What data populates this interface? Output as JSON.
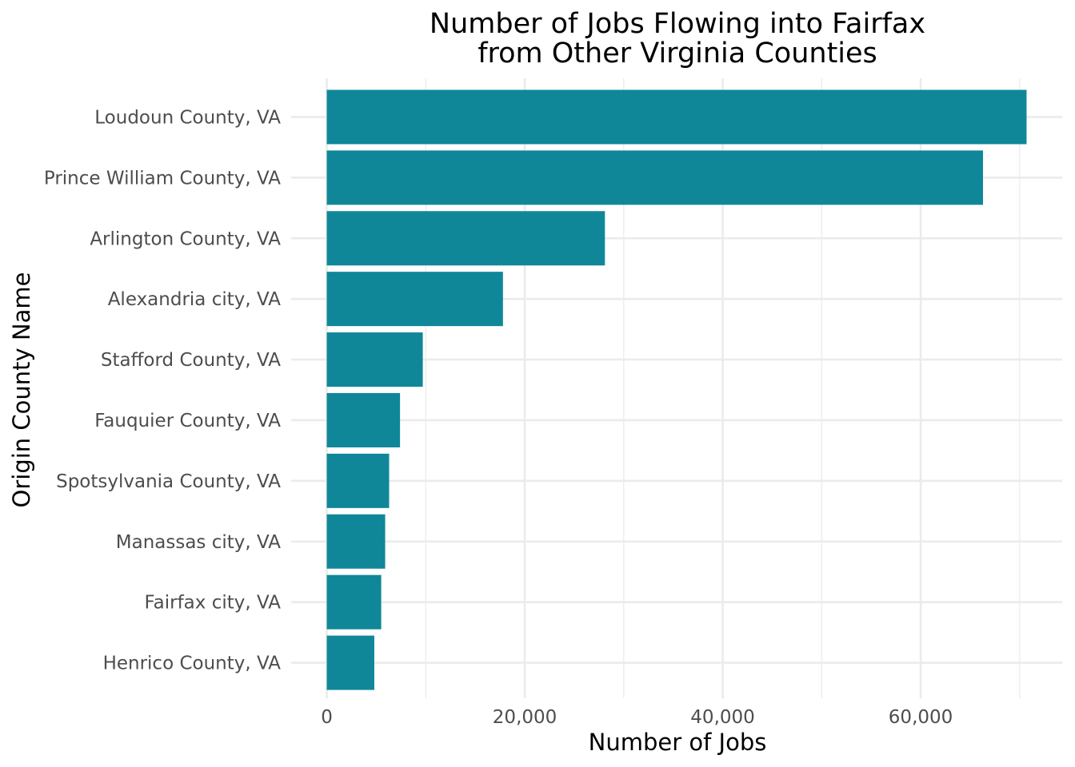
{
  "chart_data": {
    "type": "bar",
    "orientation": "horizontal",
    "title": "Number of Jobs Flowing into Fairfax\nfrom Other Virginia Counties",
    "xlabel": "Number of Jobs",
    "ylabel": "Origin County Name",
    "categories": [
      "Loudoun County, VA",
      "Prince William County, VA",
      "Arlington County, VA",
      "Alexandria city, VA",
      "Stafford County, VA",
      "Fauquier County, VA",
      "Spotsylvania County, VA",
      "Manassas city, VA",
      "Fairfax city, VA",
      "Henrico County, VA"
    ],
    "values": [
      70700,
      66300,
      28100,
      17800,
      9700,
      7400,
      6300,
      5900,
      5500,
      4800
    ],
    "x_ticks": [
      0,
      20000,
      40000,
      60000
    ],
    "x_tick_labels": [
      "0",
      "20,000",
      "40,000",
      "60,000"
    ],
    "xlim": [
      -3600,
      74300
    ],
    "grid": true,
    "bar_color": "#0f8799",
    "grid_color": "#ebebeb"
  }
}
